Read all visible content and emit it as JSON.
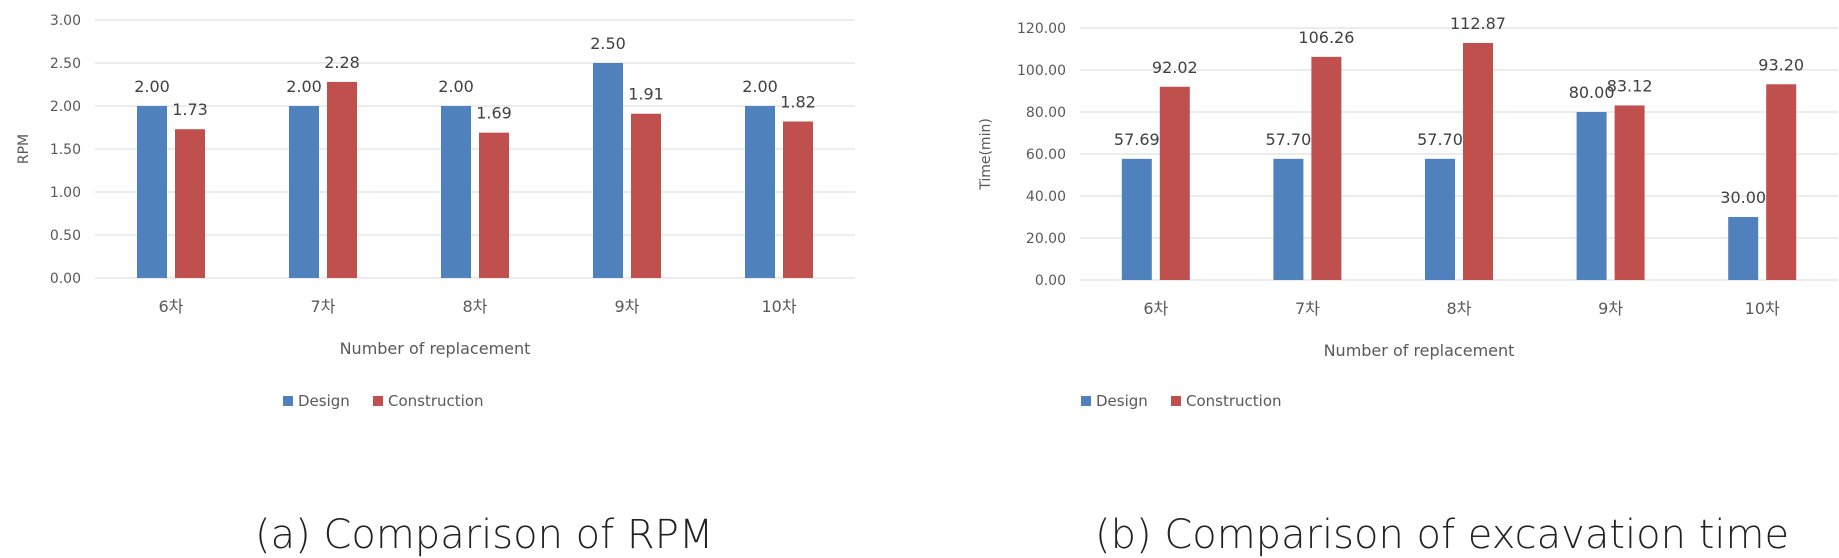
{
  "chart_data": [
    {
      "type": "bar",
      "title": "",
      "xlabel": "Number of replacement",
      "ylabel": "RPM",
      "categories": [
        "6차",
        "7차",
        "8차",
        "9차",
        "10차"
      ],
      "series": [
        {
          "name": "Design",
          "values": [
            2.0,
            2.0,
            2.0,
            2.5,
            2.0
          ],
          "labels": [
            "2.00",
            "2.00",
            "2.00",
            "2.50",
            "2.00"
          ]
        },
        {
          "name": "Construction",
          "values": [
            1.73,
            2.28,
            1.69,
            1.91,
            1.82
          ],
          "labels": [
            "1.73",
            "2.28",
            "1.69",
            "1.91",
            "1.82"
          ]
        }
      ],
      "ylim": [
        0,
        3
      ],
      "yticks": [
        "0.00",
        "0.50",
        "1.00",
        "1.50",
        "2.00",
        "2.50",
        "3.00"
      ],
      "grid": true,
      "legend_position": "bottom",
      "caption": "(a) Comparison of RPM"
    },
    {
      "type": "bar",
      "title": "",
      "xlabel": "Number of replacement",
      "ylabel": "Time(min)",
      "categories": [
        "6차",
        "7차",
        "8차",
        "9차",
        "10차"
      ],
      "series": [
        {
          "name": "Design",
          "values": [
            57.69,
            57.7,
            57.7,
            80.0,
            30.0
          ],
          "labels": [
            "57.69",
            "57.70",
            "57.70",
            "80.00",
            "30.00"
          ]
        },
        {
          "name": "Construction",
          "values": [
            92.02,
            106.26,
            112.87,
            83.12,
            93.2
          ],
          "labels": [
            "92.02",
            "106.26",
            "112.87",
            "83.12",
            "93.20"
          ]
        }
      ],
      "ylim": [
        0,
        120
      ],
      "yticks": [
        "0.00",
        "20.00",
        "40.00",
        "60.00",
        "80.00",
        "100.00",
        "120.00"
      ],
      "grid": true,
      "legend_position": "bottom",
      "caption": "(b) Comparison of excavation time"
    }
  ],
  "colors": {
    "design": "#4F81BD",
    "construction": "#C0504D",
    "grid": "#D9D9D9",
    "text": "#595959"
  }
}
